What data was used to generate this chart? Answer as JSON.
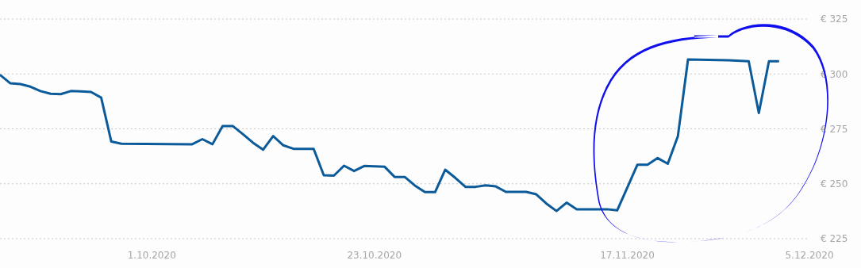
{
  "chart_data": {
    "type": "line",
    "x": [
      "2020-09-16",
      "2020-09-17",
      "2020-09-18",
      "2020-09-19",
      "2020-09-20",
      "2020-09-21",
      "2020-09-22",
      "2020-09-23",
      "2020-09-24",
      "2020-09-25",
      "2020-09-26",
      "2020-09-27",
      "2020-09-28",
      "2020-10-05",
      "2020-10-06",
      "2020-10-07",
      "2020-10-08",
      "2020-10-09",
      "2020-10-10",
      "2020-10-11",
      "2020-10-12",
      "2020-10-13",
      "2020-10-14",
      "2020-10-15",
      "2020-10-17",
      "2020-10-18",
      "2020-10-19",
      "2020-10-20",
      "2020-10-21",
      "2020-10-22",
      "2020-10-23",
      "2020-10-24",
      "2020-10-25",
      "2020-10-26",
      "2020-10-27",
      "2020-10-28",
      "2020-10-29",
      "2020-10-30",
      "2020-10-31",
      "2020-11-01",
      "2020-11-02",
      "2020-11-03",
      "2020-11-04",
      "2020-11-05",
      "2020-11-07",
      "2020-11-08",
      "2020-11-09",
      "2020-11-10",
      "2020-11-11",
      "2020-11-12",
      "2020-11-15",
      "2020-11-16",
      "2020-11-17",
      "2020-11-18",
      "2020-11-19",
      "2020-11-20",
      "2020-11-21",
      "2020-11-22",
      "2020-11-23",
      "2020-11-27",
      "2020-11-29",
      "2020-11-30",
      "2020-12-01",
      "2020-12-02"
    ],
    "series": [
      {
        "color": "#0b5a9a",
        "values": [
          299.6,
          295.8,
          295.4,
          294.2,
          292.2,
          291.0,
          290.8,
          292.2,
          292.1,
          291.8,
          289.2,
          269.2,
          268.2,
          268.0,
          270.3,
          268.0,
          276.3,
          276.3,
          272.6,
          268.7,
          265.5,
          271.7,
          267.5,
          265.9,
          265.9,
          253.9,
          253.7,
          258.2,
          255.8,
          258.1,
          257.9,
          257.8,
          253.1,
          253.1,
          249.2,
          246.2,
          246.2,
          256.4,
          252.7,
          248.6,
          248.6,
          249.3,
          248.8,
          246.3,
          246.3,
          245.2,
          241.0,
          237.6,
          241.4,
          238.4,
          238.4,
          237.9,
          248.2,
          258.7,
          258.7,
          261.7,
          259.1,
          271.7,
          306.6,
          306.2,
          305.8,
          282.2,
          305.8,
          305.8
        ]
      }
    ],
    "xlim": [
      "2020-09-16",
      "2020-12-05"
    ],
    "xticks": [
      {
        "value": "2020-10-01",
        "label": "1.10.2020"
      },
      {
        "value": "2020-10-23",
        "label": "23.10.2020"
      },
      {
        "value": "2020-11-17",
        "label": "17.11.2020"
      },
      {
        "value": "2020-12-05",
        "label": "5.12.2020"
      }
    ],
    "ylim": [
      225,
      325
    ],
    "yticks": [
      {
        "value": 225,
        "label": "€ 225"
      },
      {
        "value": 250,
        "label": "€ 250"
      },
      {
        "value": 275,
        "label": "€ 275"
      },
      {
        "value": 300,
        "label": "€ 300"
      },
      {
        "value": 325,
        "label": "€ 325"
      }
    ],
    "grid": "y",
    "legend": false,
    "marker": "none",
    "line_style": "solid"
  }
}
